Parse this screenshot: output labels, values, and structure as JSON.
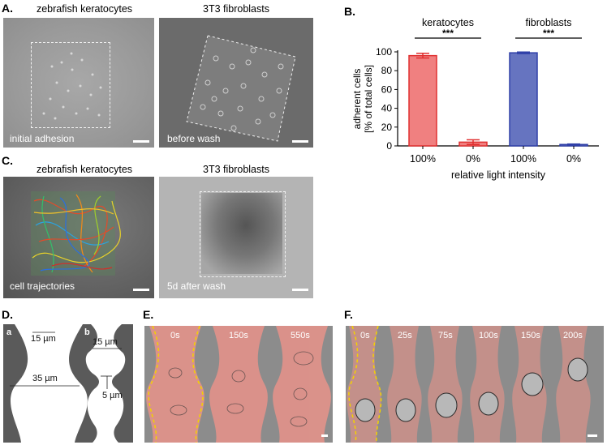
{
  "panels": {
    "A": {
      "label": "A.",
      "left_title": "zebrafish keratocytes",
      "right_title": "3T3 fibroblasts",
      "left_caption": "initial adhesion",
      "right_caption": "before wash"
    },
    "B": {
      "label": "B."
    },
    "C": {
      "label": "C.",
      "left_title": "zebrafish keratocytes",
      "right_title": "3T3 fibroblasts",
      "left_caption": "cell trajectories",
      "right_caption": "5d after wash"
    },
    "D": {
      "label": "D.",
      "sub_a": "a",
      "sub_b": "b",
      "dim_top_a": "15 µm",
      "dim_wide_a": "35 µm",
      "dim_top_b": "15 µm",
      "dim_narrow_b": "5 µm"
    },
    "E": {
      "label": "E.",
      "times": [
        "0s",
        "150s",
        "550s"
      ],
      "colors": {
        "tint": "#e88a80",
        "dash": "#f2d200"
      }
    },
    "F": {
      "label": "F.",
      "times": [
        "0s",
        "25s",
        "75s",
        "100s",
        "150s",
        "200s"
      ]
    }
  },
  "chart_data": {
    "type": "bar",
    "group_labels": [
      "keratocytes",
      "fibroblasts"
    ],
    "categories": [
      "100%",
      "0%",
      "100%",
      "0%"
    ],
    "values": [
      96,
      4,
      99,
      1.5
    ],
    "errors": [
      2.5,
      2.5,
      0.8,
      0.5
    ],
    "bar_colors": [
      "#f08080",
      "#f08080",
      "#6674c0",
      "#6674c0"
    ],
    "edge_colors": [
      "#e03030",
      "#e03030",
      "#3040a8",
      "#3040a8"
    ],
    "significance": [
      "***",
      "***"
    ],
    "xlabel": "relative light intensity",
    "ylabel_line1": "adherent cells",
    "ylabel_line2": "[% of total cells]",
    "ylim": [
      0,
      100
    ],
    "yticks": [
      "0",
      "20",
      "40",
      "60",
      "80",
      "100"
    ]
  }
}
